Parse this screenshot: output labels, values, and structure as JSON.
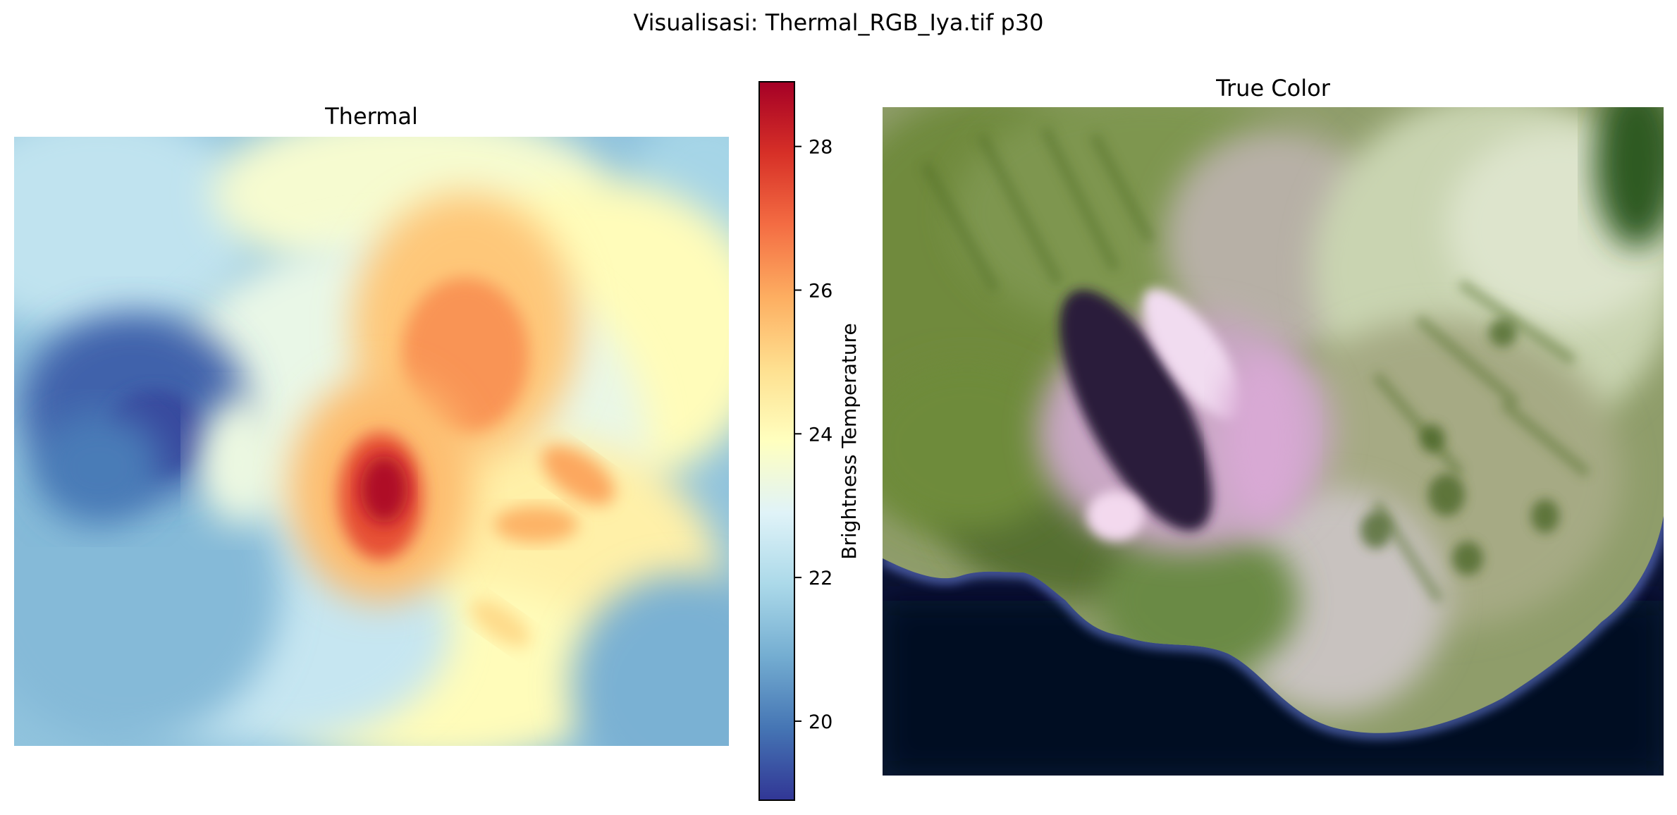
{
  "suptitle": "Visualisasi: Thermal_RGB_Iya.tif p30",
  "chart_data": [
    {
      "type": "heatmap",
      "title": "Thermal",
      "colormap": "RdYlBu_r",
      "colormap_stops": [
        "#313695",
        "#4575b4",
        "#74add1",
        "#abd9e9",
        "#e0f3f8",
        "#ffffbf",
        "#fee090",
        "#fdae61",
        "#f46d43",
        "#d73027",
        "#a50026"
      ],
      "axes": "off",
      "value_range": [
        18.9,
        28.9
      ],
      "colorbar": {
        "label": "Brightness Temperature",
        "ticks": [
          20,
          22,
          24,
          26,
          28
        ],
        "tick_labels": [
          "20",
          "22",
          "24",
          "26",
          "28"
        ],
        "vmin": 18.9,
        "vmax": 28.9,
        "placement": "right"
      },
      "hotspots": [
        {
          "location": "center-left",
          "peak_value": 28.7
        },
        {
          "location": "upper-center",
          "peak_value": 26.3
        },
        {
          "location": "center-right",
          "peak_value": 26.0
        }
      ],
      "cold_region": {
        "location": "left",
        "min_value": 19.2
      }
    },
    {
      "type": "image",
      "title": "True Color",
      "axes": "off",
      "content": "RGB satellite composite of a volcano: green vegetated slopes, pink-purple crater area, dark blue sea at lower-left and lower-right"
    }
  ]
}
